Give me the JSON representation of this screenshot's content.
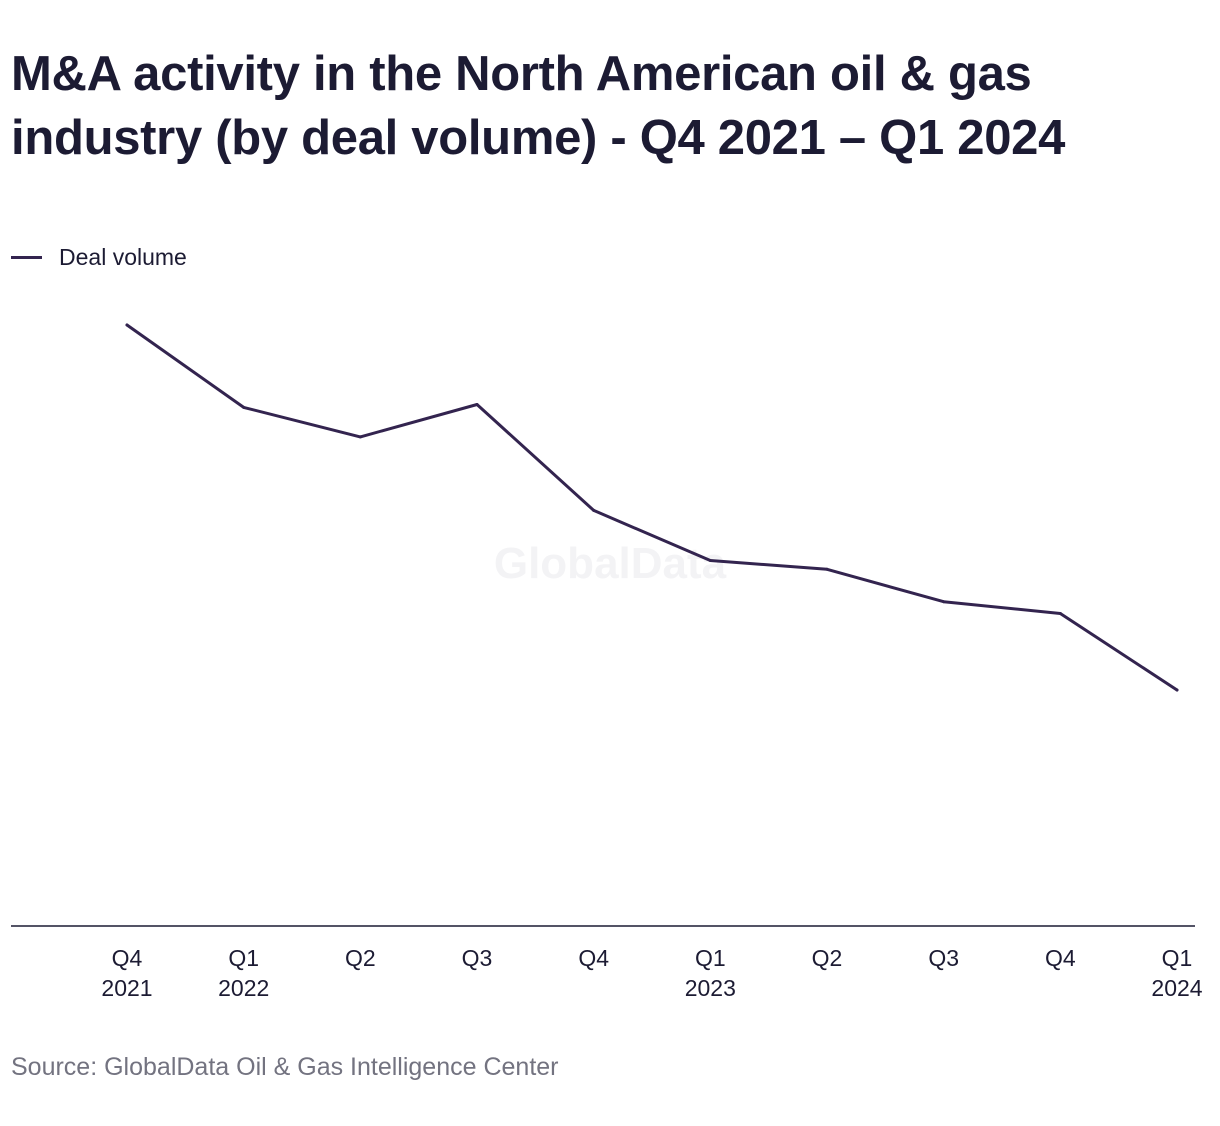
{
  "title": "M&A activity in the North American oil & gas industry (by deal volume) - Q4 2021 – Q1 2024",
  "legend": {
    "label": "Deal volume"
  },
  "source": "Source: GlobalData Oil & Gas Intelligence Center",
  "watermark": "GlobalData",
  "colors": {
    "series_line": "#33244f",
    "text": "#1c1b33",
    "source_text": "#737380",
    "axis": "#1c1b33"
  },
  "chart_data": {
    "type": "line",
    "title": "M&A activity in the North American oil & gas industry (by deal volume) - Q4 2021 – Q1 2024",
    "categories": [
      [
        "Q4",
        "2021"
      ],
      [
        "Q1",
        "2022"
      ],
      [
        "Q2",
        ""
      ],
      [
        "Q3",
        ""
      ],
      [
        "Q4",
        ""
      ],
      [
        "Q1",
        "2023"
      ],
      [
        "Q2",
        ""
      ],
      [
        "Q3",
        ""
      ],
      [
        "Q4",
        ""
      ],
      [
        "Q1",
        "2024"
      ]
    ],
    "series": [
      {
        "name": "Deal volume",
        "values": [
          100,
          86,
          81,
          86.5,
          68.5,
          60,
          58.5,
          53,
          51,
          38
        ]
      }
    ],
    "ylim": [
      -35,
      110
    ],
    "y_axis_visible": false,
    "grid": false,
    "legend_position": "top-left"
  }
}
